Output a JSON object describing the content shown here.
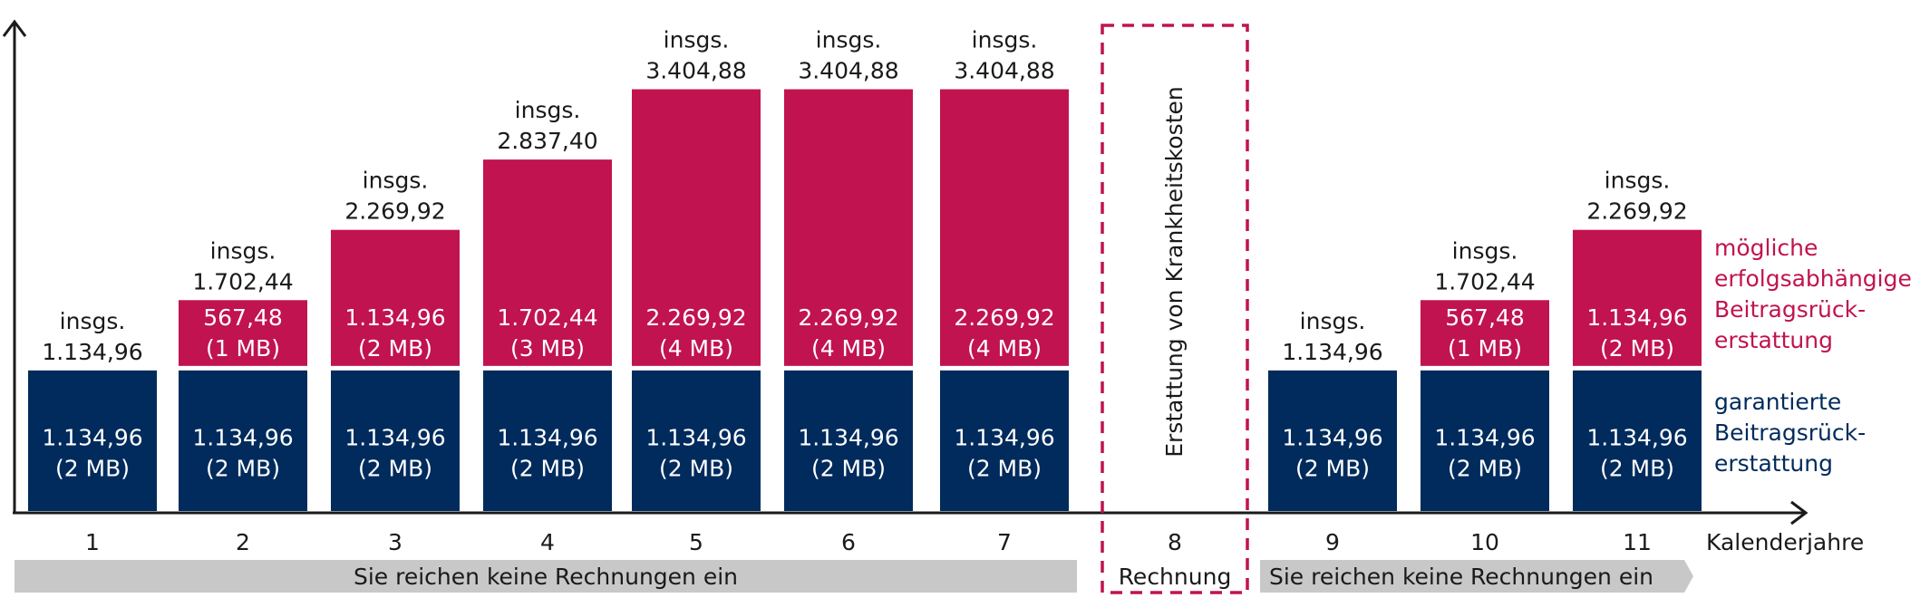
{
  "chart_data": {
    "type": "bar",
    "stacked": true,
    "x_axis_label": "Kalenderjahre",
    "categories": [
      "1",
      "2",
      "3",
      "4",
      "5",
      "6",
      "7",
      "8",
      "9",
      "10",
      "11"
    ],
    "series": [
      {
        "name": "garantierte Beitragsrück-erstattung",
        "legend_lines": [
          "garantierte",
          "Beitragsrück-",
          "erstattung"
        ],
        "color": "#002b5c",
        "values": [
          1134.96,
          1134.96,
          1134.96,
          1134.96,
          1134.96,
          1134.96,
          1134.96,
          null,
          1134.96,
          1134.96,
          1134.96
        ],
        "value_labels": [
          "1.134,96",
          "1.134,96",
          "1.134,96",
          "1.134,96",
          "1.134,96",
          "1.134,96",
          "1.134,96",
          "",
          "1.134,96",
          "1.134,96",
          "1.134,96"
        ],
        "mb_labels": [
          "(2 MB)",
          "(2 MB)",
          "(2 MB)",
          "(2 MB)",
          "(2 MB)",
          "(2 MB)",
          "(2 MB)",
          "",
          "(2 MB)",
          "(2 MB)",
          "(2 MB)"
        ]
      },
      {
        "name": "mögliche erfolgsabhängige Beitragsrück-erstattung",
        "legend_lines": [
          "mögliche",
          "erfolgsabhängige",
          "Beitragsrück-",
          "erstattung"
        ],
        "color": "#c1134f",
        "values": [
          0,
          567.48,
          1134.96,
          1702.44,
          2269.92,
          2269.92,
          2269.92,
          null,
          0,
          567.48,
          1134.96
        ],
        "value_labels": [
          "",
          "567,48",
          "1.134,96",
          "1.702,44",
          "2.269,92",
          "2.269,92",
          "2.269,92",
          "",
          "",
          "567,48",
          "1.134,96"
        ],
        "mb_labels": [
          "",
          "(1 MB)",
          "(2 MB)",
          "(3 MB)",
          "(4 MB)",
          "(4 MB)",
          "(4 MB)",
          "",
          "",
          "(1 MB)",
          "(2 MB)"
        ]
      }
    ],
    "totals": [
      1134.96,
      1702.44,
      2269.92,
      2837.4,
      3404.88,
      3404.88,
      3404.88,
      null,
      1134.96,
      1702.44,
      2269.92
    ],
    "total_prefix": "insgs.",
    "total_labels": [
      "1.134,96",
      "1.702,44",
      "2.269,92",
      "2.837,40",
      "3.404,88",
      "3.404,88",
      "3.404,88",
      "",
      "1.134,96",
      "1.702,44",
      "2.269,92"
    ],
    "ylim": [
      0,
      3950
    ],
    "grid": false,
    "legend_placement": "right",
    "annotations": {
      "claim_box_text": "Erstattung von Krankheitskosten",
      "claim_box_color": "#c1134f",
      "claim_category": "8",
      "band_left": "Sie reichen keine Rechnungen ein",
      "band_middle": "Rechnung",
      "band_right": "Sie reichen keine Rechnungen ein",
      "band_color": "#c8c8c8"
    }
  }
}
